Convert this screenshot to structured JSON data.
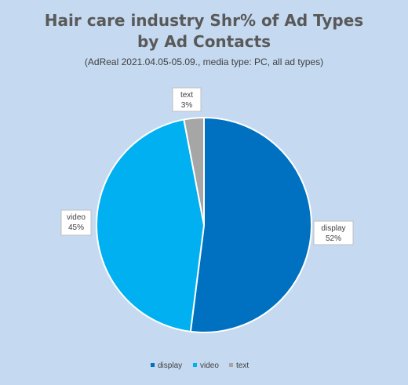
{
  "chart_data": {
    "type": "pie",
    "title_line1": "Hair care industry Shr% of Ad Types",
    "title_line2": "by Ad Contacts",
    "subtitle": "(AdReal 2021.04.05-05.09.,  media type: PC, all ad types)",
    "categories": [
      "display",
      "video",
      "text"
    ],
    "values": [
      52,
      45,
      3
    ],
    "value_labels": [
      "52%",
      "45%",
      "3%"
    ],
    "colors": [
      "#0070c0",
      "#00b0f0",
      "#a6a6a6"
    ],
    "legend_position": "bottom",
    "start_angle_deg": 0,
    "direction": "clockwise"
  }
}
